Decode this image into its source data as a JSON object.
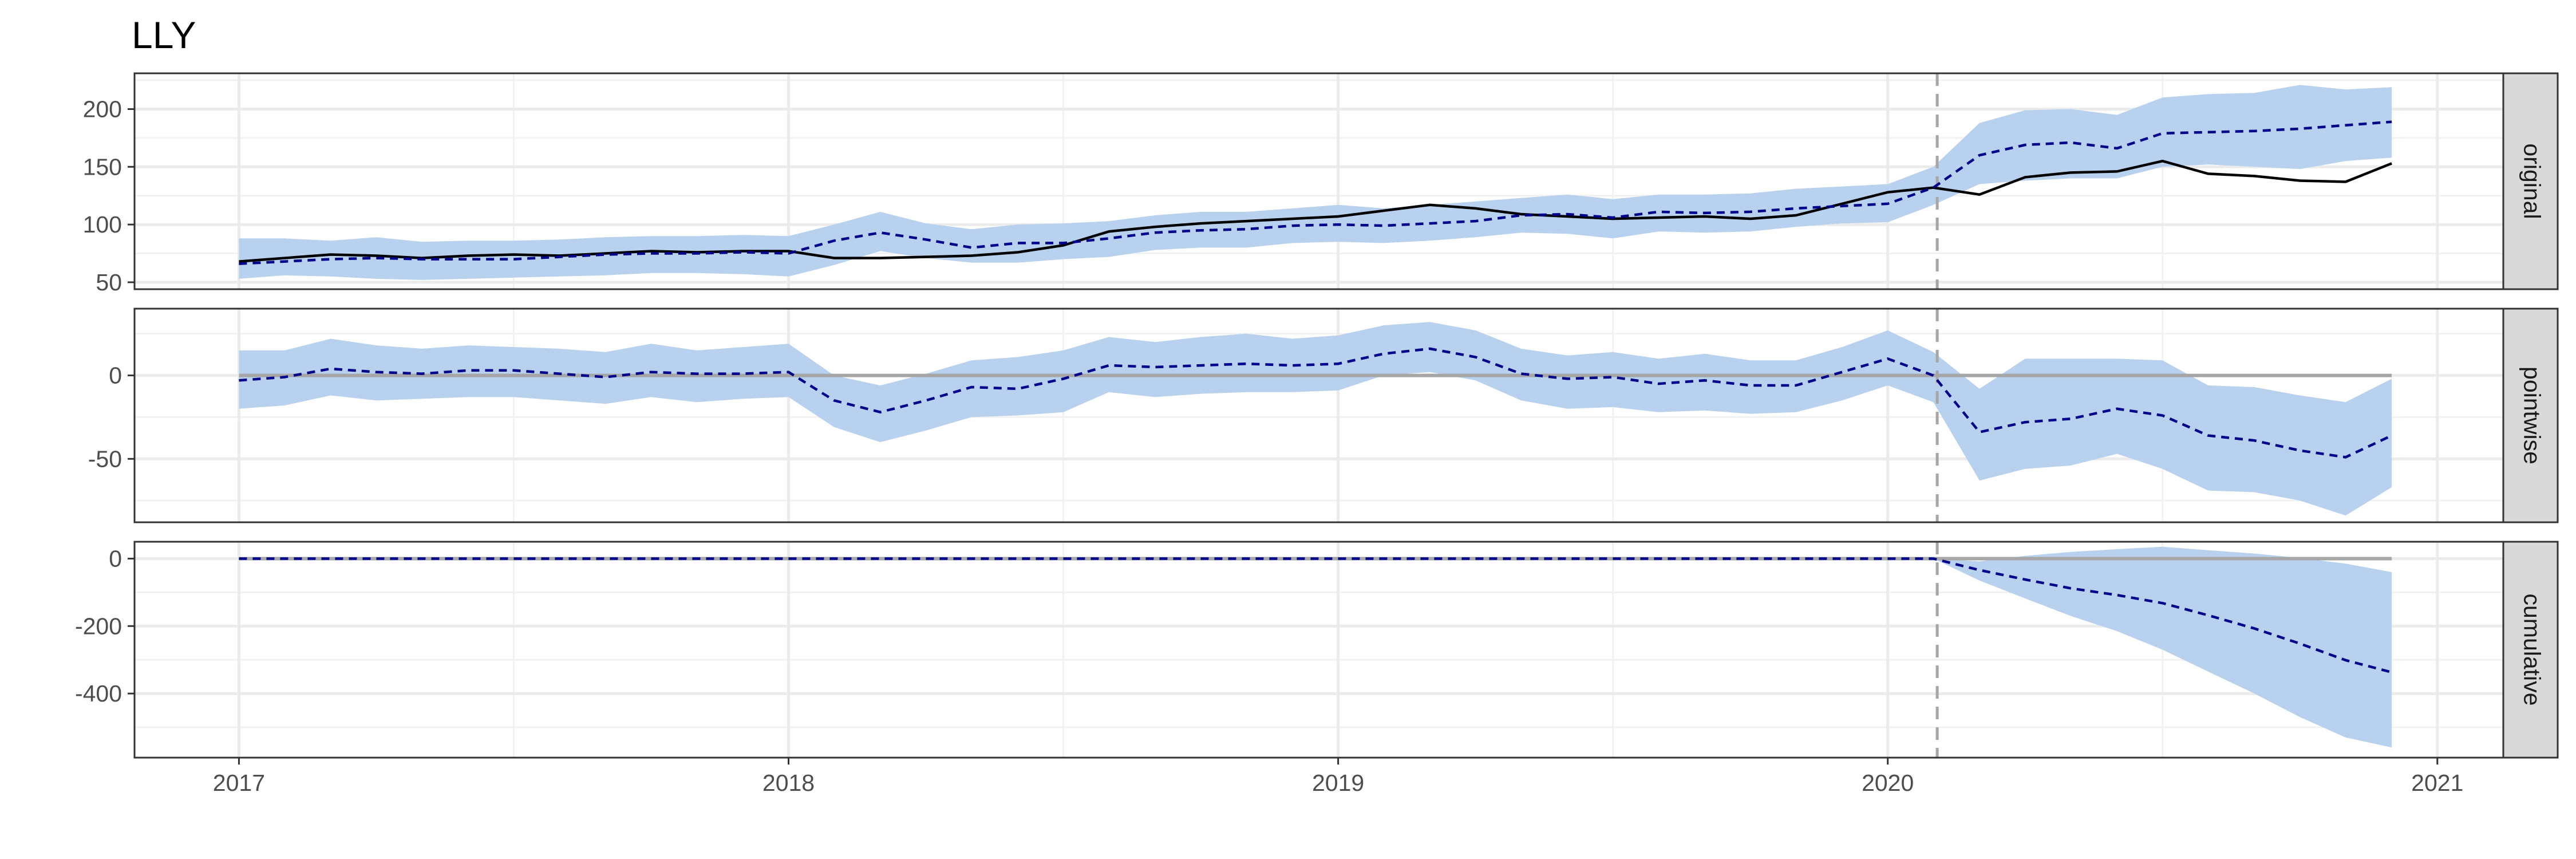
{
  "chart_data": {
    "type": "line",
    "title": "LLY",
    "xlabel": "",
    "ylabel": "",
    "x_ticks": [
      "2017",
      "2018",
      "2019",
      "2020",
      "2021"
    ],
    "x_range": [
      2016.81,
      2021.12
    ],
    "intervention": 2020.09,
    "colors": {
      "ribbon": "#b8d1ee",
      "predicted": "#00008b",
      "actual": "#000000",
      "zero": "#a6a6a6",
      "intervention": "#a6a6a6",
      "strip_bg": "#d9d9d9"
    },
    "x": [
      2017.0,
      2017.083,
      2017.167,
      2017.25,
      2017.333,
      2017.417,
      2017.5,
      2017.583,
      2017.667,
      2017.75,
      2017.833,
      2017.917,
      2018.0,
      2018.083,
      2018.167,
      2018.25,
      2018.333,
      2018.417,
      2018.5,
      2018.583,
      2018.667,
      2018.75,
      2018.833,
      2018.917,
      2019.0,
      2019.083,
      2019.167,
      2019.25,
      2019.333,
      2019.417,
      2019.5,
      2019.583,
      2019.667,
      2019.75,
      2019.833,
      2019.917,
      2020.0,
      2020.083,
      2020.167,
      2020.25,
      2020.333,
      2020.417,
      2020.5,
      2020.583,
      2020.667,
      2020.75,
      2020.833,
      2020.917
    ],
    "panels": [
      {
        "label": "original",
        "y_ticks": [
          50,
          100,
          150,
          200
        ],
        "ylim": [
          44,
          231
        ],
        "actual": [
          68,
          71,
          74,
          73,
          71,
          73,
          74,
          73,
          75,
          77,
          76,
          77,
          77,
          71,
          71,
          72,
          73,
          76,
          82,
          94,
          98,
          101,
          103,
          105,
          107,
          112,
          117,
          114,
          109,
          107,
          105,
          106,
          107,
          105,
          108,
          118,
          128,
          132,
          126,
          141,
          145,
          146,
          155,
          144,
          142,
          138,
          137,
          153
        ],
        "predicted": [
          66,
          68,
          70,
          71,
          70,
          70,
          70,
          72,
          74,
          75,
          75,
          76,
          75,
          86,
          93,
          87,
          80,
          84,
          84,
          88,
          93,
          95,
          96,
          99,
          100,
          99,
          101,
          103,
          108,
          109,
          106,
          111,
          110,
          111,
          114,
          116,
          118,
          132,
          160,
          169,
          171,
          166,
          179,
          180,
          181,
          183,
          186,
          189
        ],
        "lower": [
          53,
          56,
          55,
          53,
          52,
          53,
          54,
          55,
          56,
          58,
          58,
          57,
          55,
          65,
          77,
          71,
          67,
          67,
          70,
          72,
          78,
          80,
          80,
          84,
          85,
          84,
          86,
          89,
          93,
          92,
          88,
          94,
          93,
          94,
          98,
          101,
          102,
          117,
          135,
          138,
          140,
          140,
          150,
          152,
          150,
          148,
          155,
          158
        ],
        "upper": [
          88,
          88,
          86,
          89,
          85,
          86,
          86,
          87,
          89,
          90,
          90,
          91,
          90,
          100,
          111,
          101,
          96,
          100,
          101,
          103,
          108,
          111,
          111,
          114,
          117,
          114,
          117,
          120,
          123,
          126,
          122,
          126,
          126,
          127,
          131,
          133,
          135,
          150,
          188,
          199,
          200,
          195,
          210,
          213,
          214,
          221,
          217,
          219
        ]
      },
      {
        "label": "pointwise",
        "y_ticks": [
          -50,
          0
        ],
        "ylim": [
          -88,
          40
        ],
        "predicted": [
          -3,
          -1,
          4,
          2,
          1,
          3,
          3,
          1,
          -1,
          2,
          1,
          1,
          2,
          -15,
          -22,
          -15,
          -7,
          -8,
          -2,
          6,
          5,
          6,
          7,
          6,
          7,
          13,
          16,
          11,
          1,
          -2,
          -1,
          -5,
          -3,
          -6,
          -6,
          2,
          10,
          0,
          -34,
          -28,
          -26,
          -20,
          -24,
          -36,
          -39,
          -45,
          -49,
          -36
        ],
        "lower": [
          -20,
          -18,
          -12,
          -15,
          -14,
          -13,
          -13,
          -15,
          -17,
          -13,
          -16,
          -14,
          -13,
          -31,
          -40,
          -33,
          -25,
          -24,
          -22,
          -10,
          -13,
          -11,
          -10,
          -10,
          -9,
          0,
          2,
          -3,
          -15,
          -20,
          -19,
          -22,
          -21,
          -23,
          -22,
          -15,
          -6,
          -16,
          -63,
          -56,
          -54,
          -47,
          -56,
          -69,
          -70,
          -75,
          -84,
          -67
        ],
        "upper": [
          15,
          15,
          22,
          18,
          16,
          18,
          17,
          16,
          14,
          19,
          15,
          17,
          19,
          0,
          -6,
          1,
          9,
          11,
          15,
          23,
          20,
          23,
          25,
          22,
          24,
          30,
          32,
          27,
          16,
          12,
          14,
          10,
          13,
          9,
          9,
          17,
          27,
          14,
          -8,
          10,
          10,
          10,
          9,
          -6,
          -7,
          -12,
          -16,
          -2
        ]
      },
      {
        "label": "cumulative",
        "y_ticks": [
          -400,
          -200,
          0
        ],
        "ylim": [
          -590,
          50
        ],
        "predicted": [
          0,
          0,
          0,
          0,
          0,
          0,
          0,
          0,
          0,
          0,
          0,
          0,
          0,
          0,
          0,
          0,
          0,
          0,
          0,
          0,
          0,
          0,
          0,
          0,
          0,
          0,
          0,
          0,
          0,
          0,
          0,
          0,
          0,
          0,
          0,
          0,
          0,
          0,
          -34,
          -62,
          -88,
          -108,
          -132,
          -168,
          -207,
          -252,
          -301,
          -337
        ],
        "lower": [
          0,
          0,
          0,
          0,
          0,
          0,
          0,
          0,
          0,
          0,
          0,
          0,
          0,
          0,
          0,
          0,
          0,
          0,
          0,
          0,
          0,
          0,
          0,
          0,
          0,
          0,
          0,
          0,
          0,
          0,
          0,
          0,
          0,
          0,
          0,
          0,
          0,
          0,
          -65,
          -118,
          -170,
          -215,
          -270,
          -335,
          -400,
          -470,
          -530,
          -560
        ],
        "upper": [
          0,
          0,
          0,
          0,
          0,
          0,
          0,
          0,
          0,
          0,
          0,
          0,
          0,
          0,
          0,
          0,
          0,
          0,
          0,
          0,
          0,
          0,
          0,
          0,
          0,
          0,
          0,
          0,
          0,
          0,
          0,
          0,
          0,
          0,
          0,
          0,
          0,
          0,
          -8,
          8,
          20,
          28,
          35,
          25,
          15,
          2,
          -15,
          -40
        ]
      }
    ]
  }
}
